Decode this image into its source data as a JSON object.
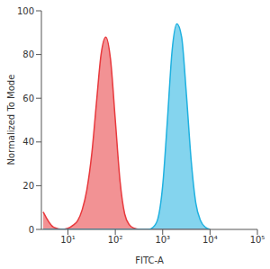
{
  "chart_data": {
    "type": "area",
    "xlabel": "FITC-A",
    "ylabel": "Normalized To Mode",
    "log": "x",
    "x": [
      3,
      5,
      8,
      10,
      13,
      16,
      20,
      25,
      32,
      40,
      50,
      63,
      79,
      100,
      126,
      158,
      200,
      251,
      316,
      398,
      501,
      631,
      794,
      1000,
      1259,
      1585,
      1995,
      2512,
      3162,
      3981,
      5012,
      6310,
      7943,
      10000
    ],
    "series": [
      {
        "color": "#e8393d",
        "values": [
          8,
          1,
          0,
          0.5,
          2,
          4,
          9,
          18,
          35,
          58,
          80,
          88,
          78,
          50,
          22,
          7,
          2,
          0.5,
          0,
          0,
          0,
          0,
          0,
          0,
          0,
          0,
          0,
          0,
          0,
          0,
          0,
          0,
          0,
          0
        ]
      },
      {
        "color": "#1fb1e0",
        "values": [
          0,
          0,
          0,
          0,
          0,
          0,
          0,
          0,
          0,
          0,
          0,
          0,
          0,
          0,
          0,
          0,
          0,
          0,
          0,
          0,
          0,
          1,
          5,
          20,
          50,
          82,
          94,
          88,
          62,
          32,
          12,
          4,
          1,
          0
        ]
      }
    ],
    "xlim": [
      2.75,
      100000
    ],
    "xticks": [
      {
        "value": 10,
        "label": "10¹"
      },
      {
        "value": 100,
        "label": "10²"
      },
      {
        "value": 1000,
        "label": "10³"
      },
      {
        "value": 10000,
        "label": "10⁴"
      },
      {
        "value": 100000,
        "label": "10⁵"
      }
    ],
    "ylim": [
      0,
      100
    ],
    "yticks": [
      0,
      20,
      40,
      60,
      80,
      100
    ]
  }
}
